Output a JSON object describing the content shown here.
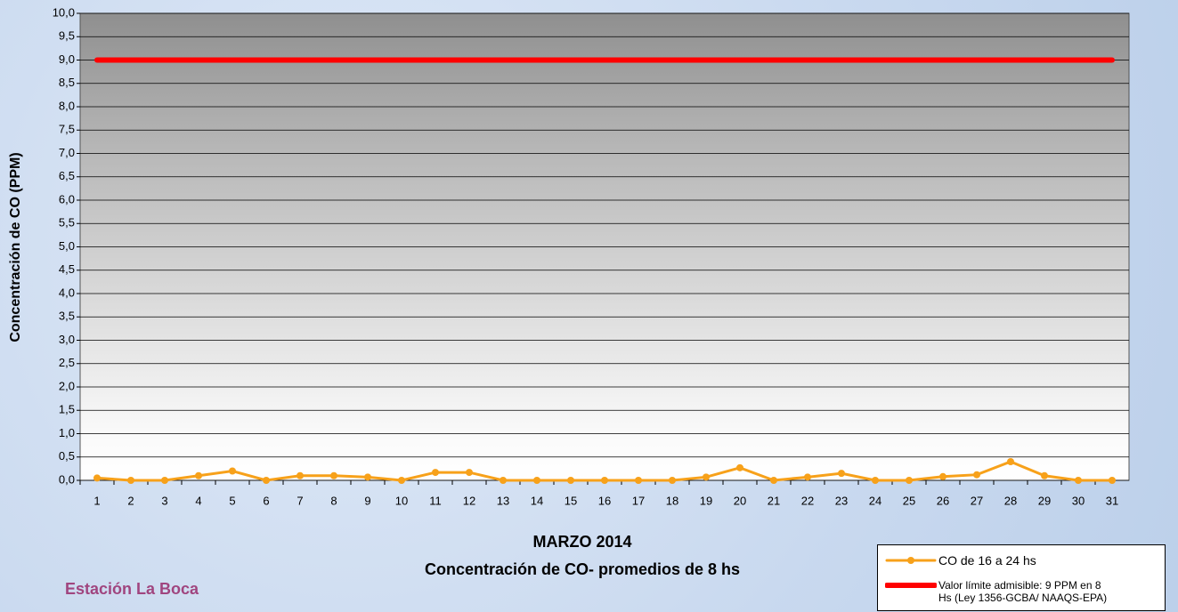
{
  "chart_data": {
    "type": "line",
    "title": "MARZO 2014",
    "subtitle": "Concentración de CO- promedios de 8 hs",
    "station": "Estación La Boca",
    "y_label": "Concentración de CO (PPM)",
    "categories": [
      "1",
      "2",
      "3",
      "4",
      "5",
      "6",
      "7",
      "8",
      "9",
      "10",
      "11",
      "12",
      "13",
      "14",
      "15",
      "16",
      "17",
      "18",
      "19",
      "20",
      "21",
      "22",
      "23",
      "24",
      "25",
      "26",
      "27",
      "28",
      "29",
      "30",
      "31"
    ],
    "series": [
      {
        "name": "CO de 16 a 24 hs",
        "color": "#f7a11a",
        "markers": true,
        "values": [
          0.05,
          0,
          0,
          0.1,
          0.2,
          0,
          0.1,
          0.1,
          0.07,
          0,
          0.17,
          0.17,
          0,
          0,
          0,
          0,
          0,
          0,
          0.07,
          0.27,
          0,
          0.07,
          0.15,
          0,
          0,
          0.08,
          0.12,
          0.4,
          0.1,
          0,
          0
        ]
      },
      {
        "name": "Valor límite admisible: 9 PPM en 8 Hs (Ley 1356-GCBA/ NAAQS-EPA)",
        "color": "#ff0000",
        "markers": false,
        "values": [
          9,
          9,
          9,
          9,
          9,
          9,
          9,
          9,
          9,
          9,
          9,
          9,
          9,
          9,
          9,
          9,
          9,
          9,
          9,
          9,
          9,
          9,
          9,
          9,
          9,
          9,
          9,
          9,
          9,
          9,
          9
        ]
      }
    ],
    "ylim": [
      0,
      10
    ],
    "yticks": [
      {
        "value": 0,
        "label": "0,0"
      },
      {
        "value": 0.5,
        "label": "0,5"
      },
      {
        "value": 1,
        "label": "1,0"
      },
      {
        "value": 1.5,
        "label": "1,5"
      },
      {
        "value": 2,
        "label": "2,0"
      },
      {
        "value": 2.5,
        "label": "2,5"
      },
      {
        "value": 3,
        "label": "3,0"
      },
      {
        "value": 3.5,
        "label": "3,5"
      },
      {
        "value": 4,
        "label": "4,0"
      },
      {
        "value": 4.5,
        "label": "4,5"
      },
      {
        "value": 5,
        "label": "5,0"
      },
      {
        "value": 5.5,
        "label": "5,5"
      },
      {
        "value": 6,
        "label": "6,0"
      },
      {
        "value": 6.5,
        "label": "6,5"
      },
      {
        "value": 7,
        "label": "7,0"
      },
      {
        "value": 7.5,
        "label": "7,5"
      },
      {
        "value": 8,
        "label": "8,0"
      },
      {
        "value": 8.5,
        "label": "8,5"
      },
      {
        "value": 9,
        "label": "9,0"
      },
      {
        "value": 9.5,
        "label": "9,5"
      },
      {
        "value": 10,
        "label": "10,0"
      }
    ],
    "grid": true
  }
}
